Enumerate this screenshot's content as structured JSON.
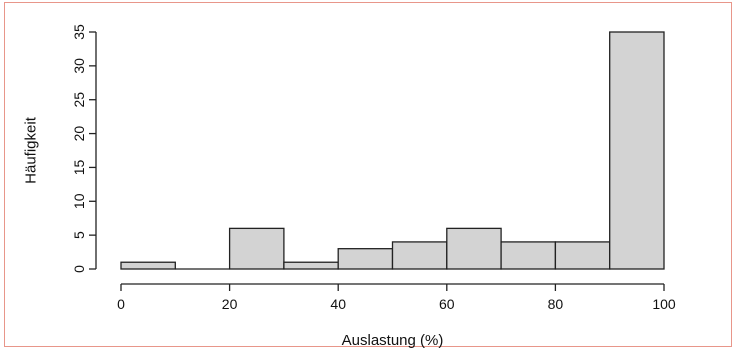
{
  "chart_data": {
    "type": "bar",
    "subtype": "histogram",
    "xlabel": "Auslastung (%)",
    "ylabel": "Häufigkeit",
    "bin_edges": [
      0,
      10,
      20,
      30,
      40,
      50,
      60,
      70,
      80,
      90,
      100
    ],
    "values": [
      1,
      0,
      6,
      1,
      3,
      4,
      6,
      4,
      4,
      35
    ],
    "xlim": [
      0,
      100
    ],
    "ylim": [
      0,
      35
    ],
    "x_ticks": [
      0,
      20,
      40,
      60,
      80,
      100
    ],
    "y_ticks": [
      0,
      5,
      10,
      15,
      20,
      25,
      30,
      35
    ],
    "grid": false,
    "colors": {
      "bar_fill": "#d3d3d3",
      "bar_stroke": "#222222",
      "frame": "#e8968a"
    }
  }
}
